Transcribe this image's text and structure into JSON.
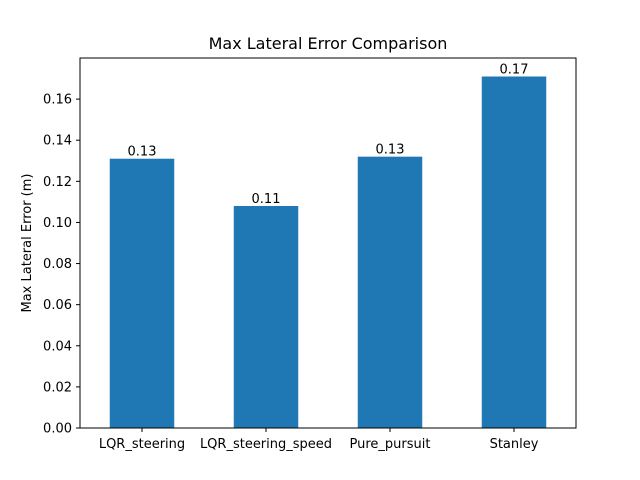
{
  "chart_data": {
    "type": "bar",
    "title": "Max Lateral Error Comparison",
    "xlabel": "",
    "ylabel": "Max Lateral Error (m)",
    "categories": [
      "LQR_steering",
      "LQR_steering_speed",
      "Pure_pursuit",
      "Stanley"
    ],
    "values": [
      0.131,
      0.108,
      0.132,
      0.171
    ],
    "data_labels": [
      "0.13",
      "0.11",
      "0.13",
      "0.17"
    ],
    "ylim": [
      0,
      0.18
    ],
    "yticks": [
      0.0,
      0.02,
      0.04,
      0.06,
      0.08,
      0.1,
      0.12,
      0.14,
      0.16
    ],
    "ytick_labels": [
      "0.00",
      "0.02",
      "0.04",
      "0.06",
      "0.08",
      "0.10",
      "0.12",
      "0.14",
      "0.16"
    ],
    "bar_color": "#1f77b4",
    "grid": false
  }
}
